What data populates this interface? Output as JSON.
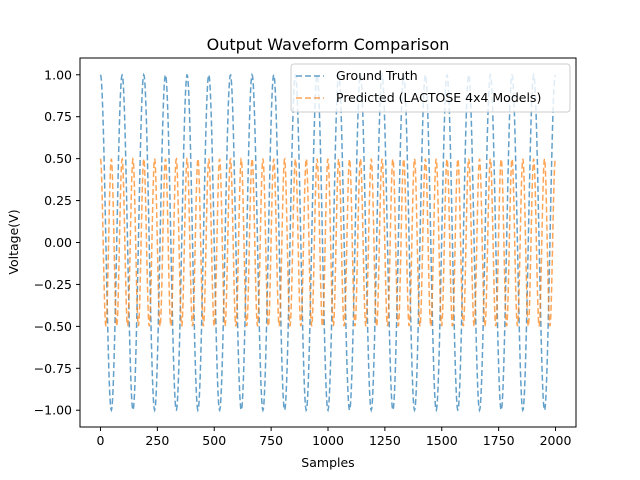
{
  "chart_data": {
    "type": "line",
    "title": "Output Waveform Comparison",
    "xlabel": "Samples",
    "ylabel": "Voltage(V)",
    "xlim": [
      -90,
      2090
    ],
    "ylim": [
      -1.1,
      1.1
    ],
    "xticks": [
      0,
      250,
      500,
      750,
      1000,
      1250,
      1500,
      1750,
      2000
    ],
    "yticks": [
      -1.0,
      -0.75,
      -0.5,
      -0.25,
      0.0,
      0.25,
      0.5,
      0.75,
      1.0
    ],
    "xtick_labels": [
      "0",
      "250",
      "500",
      "750",
      "1000",
      "1250",
      "1500",
      "1750",
      "2000"
    ],
    "ytick_labels": [
      "−1.00",
      "−0.75",
      "−0.50",
      "−0.25",
      "0.00",
      "0.25",
      "0.50",
      "0.75",
      "1.00"
    ],
    "grid": false,
    "legend_position": "top-right",
    "series": [
      {
        "name": "Ground Truth",
        "color": "#1f77b4",
        "style": "dashed",
        "function": "cosine",
        "amplitude": 1.0,
        "period_samples": 95.2,
        "phase": 0.0,
        "x_start": 0,
        "x_end": 2000
      },
      {
        "name": "Predicted (LACTOSE 4x4 Models)",
        "color": "#ff7f0e",
        "style": "dashed",
        "function": "cosine",
        "amplitude": 0.5,
        "period_samples": 47.6,
        "phase": 0.0,
        "x_start": 0,
        "x_end": 2000
      }
    ]
  }
}
